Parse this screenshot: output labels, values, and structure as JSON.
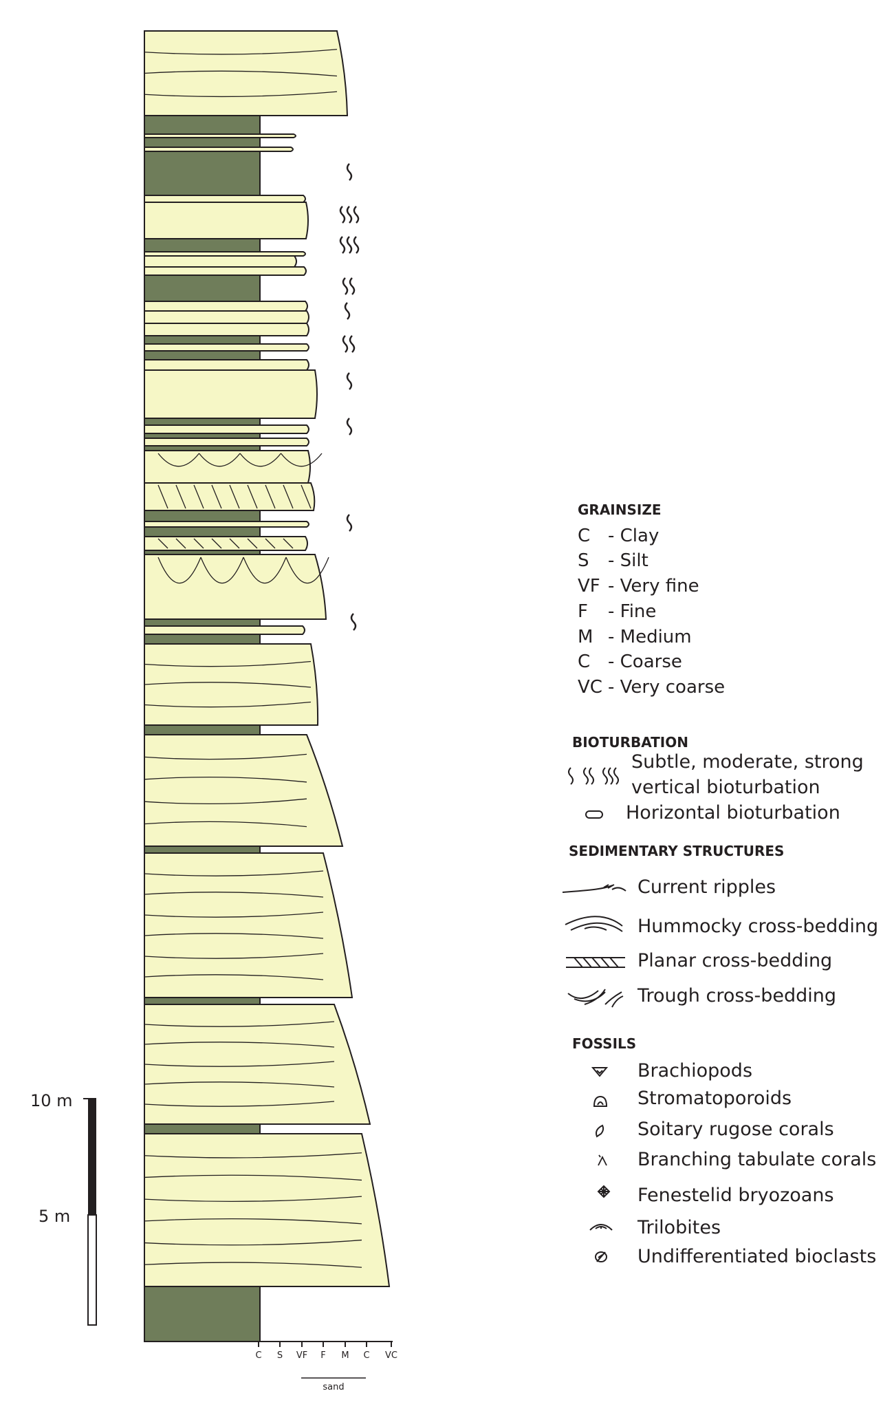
{
  "scale": {
    "top_label": "10 m",
    "mid_label": "5 m"
  },
  "grain_axis": {
    "ticks": [
      "C",
      "S",
      "VF",
      "F",
      "M",
      "C",
      "VC"
    ],
    "group_label": "sand"
  },
  "legend": {
    "grainsize": {
      "title": "GRAINSIZE",
      "items": [
        {
          "code": "C",
          "name": "- Clay"
        },
        {
          "code": "S",
          "name": "- Silt"
        },
        {
          "code": "VF",
          "name": "- Very fine"
        },
        {
          "code": "F",
          "name": "- Fine"
        },
        {
          "code": "M",
          "name": "- Medium"
        },
        {
          "code": "C",
          "name": "- Coarse"
        },
        {
          "code": "VC",
          "name": "- Very coarse"
        }
      ]
    },
    "bioturbation": {
      "title": "BIOTURBATION",
      "vertical_line1": "Subtle, moderate, strong",
      "vertical_line2": "vertical bioturbation",
      "horizontal": "Horizontal bioturbation"
    },
    "sedimentary": {
      "title": "SEDIMENTARY STRUCTURES",
      "items": [
        "Current ripples",
        "Hummocky cross-bedding",
        "Planar cross-bedding",
        "Trough cross-bedding"
      ]
    },
    "fossils": {
      "title": "FOSSILS",
      "items": [
        "Brachiopods",
        "Stromatoporoids",
        "Soitary rugose corals",
        "Branching tabulate corals",
        "Fenestelid bryozoans",
        "Trilobites",
        "Undifferentiated bioclasts"
      ]
    }
  },
  "colors": {
    "sandstone": "#f6f7c6",
    "mudstone": "#6f7d5a",
    "line": "#231f20"
  }
}
